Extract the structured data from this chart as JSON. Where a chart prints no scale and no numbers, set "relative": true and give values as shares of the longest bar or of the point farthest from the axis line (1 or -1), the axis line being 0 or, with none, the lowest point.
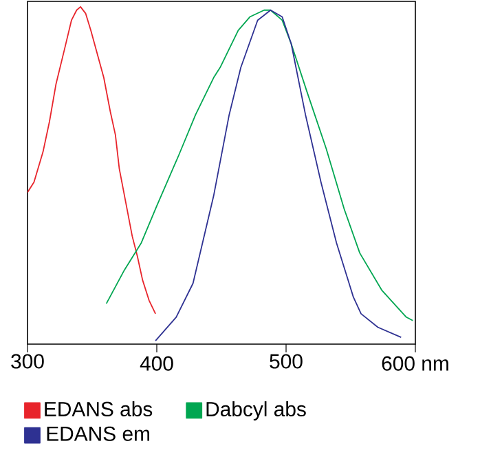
{
  "chart_data": {
    "type": "line",
    "relative": true,
    "xlim": [
      300,
      600
    ],
    "xticks": [
      300,
      400,
      500,
      {
        "value": 600,
        "label": "600 nm"
      }
    ],
    "legend": "bottom",
    "grid": false,
    "marker": "none",
    "line_style": "solid",
    "series": [
      {
        "name": "EDANS abs",
        "color": "#e8242b",
        "x": [
          300,
          305,
          312,
          317,
          322,
          329,
          334,
          338,
          341,
          345,
          349,
          354,
          359,
          364,
          368,
          371,
          376,
          381,
          385,
          389,
          394,
          399
        ],
        "values": [
          0.45,
          0.48,
          0.57,
          0.66,
          0.77,
          0.88,
          0.96,
          0.99,
          1,
          0.98,
          0.93,
          0.86,
          0.79,
          0.69,
          0.62,
          0.52,
          0.42,
          0.32,
          0.26,
          0.19,
          0.13,
          0.09
        ]
      },
      {
        "name": "Dabcyl abs",
        "color": "#00a651",
        "x": [
          361,
          375,
          388,
          400,
          417,
          430,
          444,
          449,
          463,
          472,
          483,
          488,
          497,
          504,
          516,
          531,
          545,
          557,
          574,
          593,
          598
        ],
        "values": [
          0.12,
          0.22,
          0.3,
          0.41,
          0.56,
          0.68,
          0.79,
          0.82,
          0.93,
          0.97,
          0.99,
          0.99,
          0.96,
          0.89,
          0.75,
          0.58,
          0.4,
          0.27,
          0.16,
          0.08,
          0.07
        ]
      },
      {
        "name": "EDANS em",
        "color": "#2e3192",
        "x": [
          399,
          415,
          428,
          444,
          456,
          465,
          478,
          488,
          497,
          504,
          515,
          527,
          539,
          552,
          558,
          571,
          589
        ],
        "values": [
          0.01,
          0.08,
          0.18,
          0.44,
          0.68,
          0.82,
          0.96,
          0.99,
          0.97,
          0.89,
          0.68,
          0.48,
          0.3,
          0.14,
          0.09,
          0.05,
          0.02
        ]
      }
    ]
  }
}
